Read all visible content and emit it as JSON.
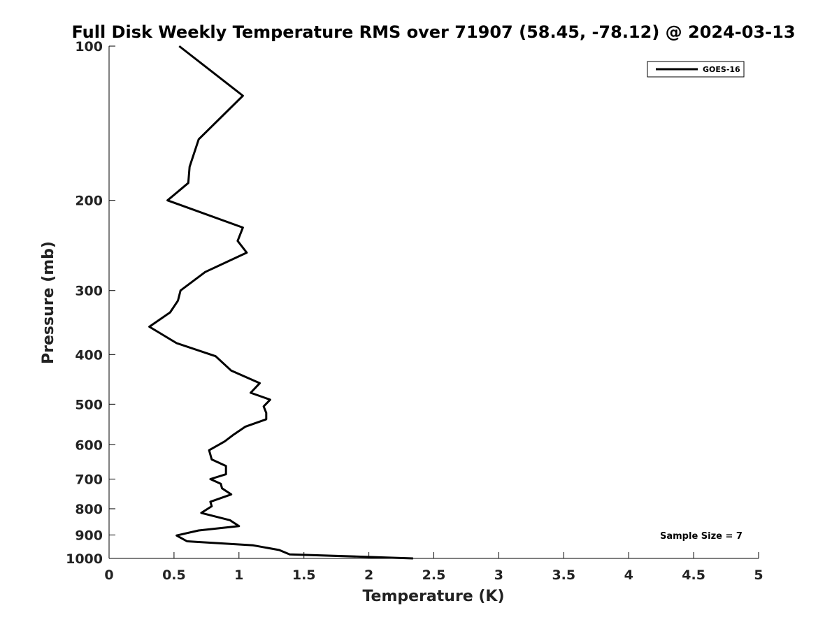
{
  "chart_data": {
    "type": "line",
    "title": "Full Disk Weekly Temperature RMS over 71907 (58.45, -78.12) @ 2024-03-13",
    "xlabel": "Temperature (K)",
    "ylabel": "Pressure (mb)",
    "xlim": [
      0,
      5
    ],
    "ylim": [
      100,
      1000
    ],
    "y_scale": "log",
    "y_reversed": true,
    "x_ticks": [
      0,
      0.5,
      1,
      1.5,
      2,
      2.5,
      3,
      3.5,
      4,
      4.5,
      5
    ],
    "x_tick_labels": [
      "0",
      "0.5",
      "1",
      "1.5",
      "2",
      "2.5",
      "3",
      "3.5",
      "4",
      "4.5",
      "5"
    ],
    "y_ticks": [
      100,
      200,
      300,
      400,
      500,
      600,
      700,
      800,
      900,
      1000
    ],
    "y_tick_labels": [
      "100",
      "200",
      "300",
      "400",
      "500",
      "600",
      "700",
      "800",
      "900",
      "1000"
    ],
    "grid": false,
    "legend_position": "top-right",
    "annotation": "Sample Size = 7",
    "series": [
      {
        "name": "GOES-16",
        "color": "#000000",
        "x": [
          0.54,
          1.03,
          0.69,
          0.62,
          0.61,
          0.45,
          1.03,
          0.99,
          1.06,
          0.74,
          0.55,
          0.53,
          0.47,
          0.31,
          0.52,
          0.82,
          0.94,
          1.16,
          1.09,
          1.24,
          1.19,
          1.21,
          1.21,
          1.05,
          0.96,
          0.89,
          0.77,
          0.79,
          0.9,
          0.9,
          0.78,
          0.86,
          0.87,
          0.94,
          0.78,
          0.79,
          0.71,
          0.93,
          1.0,
          0.69,
          0.52,
          0.6,
          1.11,
          1.31,
          1.39,
          2.34
        ],
        "y": [
          100,
          125,
          152,
          172,
          185,
          200,
          226,
          240,
          253,
          276,
          300,
          314,
          331,
          353,
          380,
          403,
          430,
          455,
          475,
          490,
          505,
          520,
          535,
          553,
          573,
          591,
          615,
          641,
          660,
          685,
          700,
          715,
          730,
          750,
          775,
          791,
          815,
          842,
          865,
          882,
          902,
          926,
          943,
          963,
          982,
          1000
        ]
      }
    ]
  }
}
